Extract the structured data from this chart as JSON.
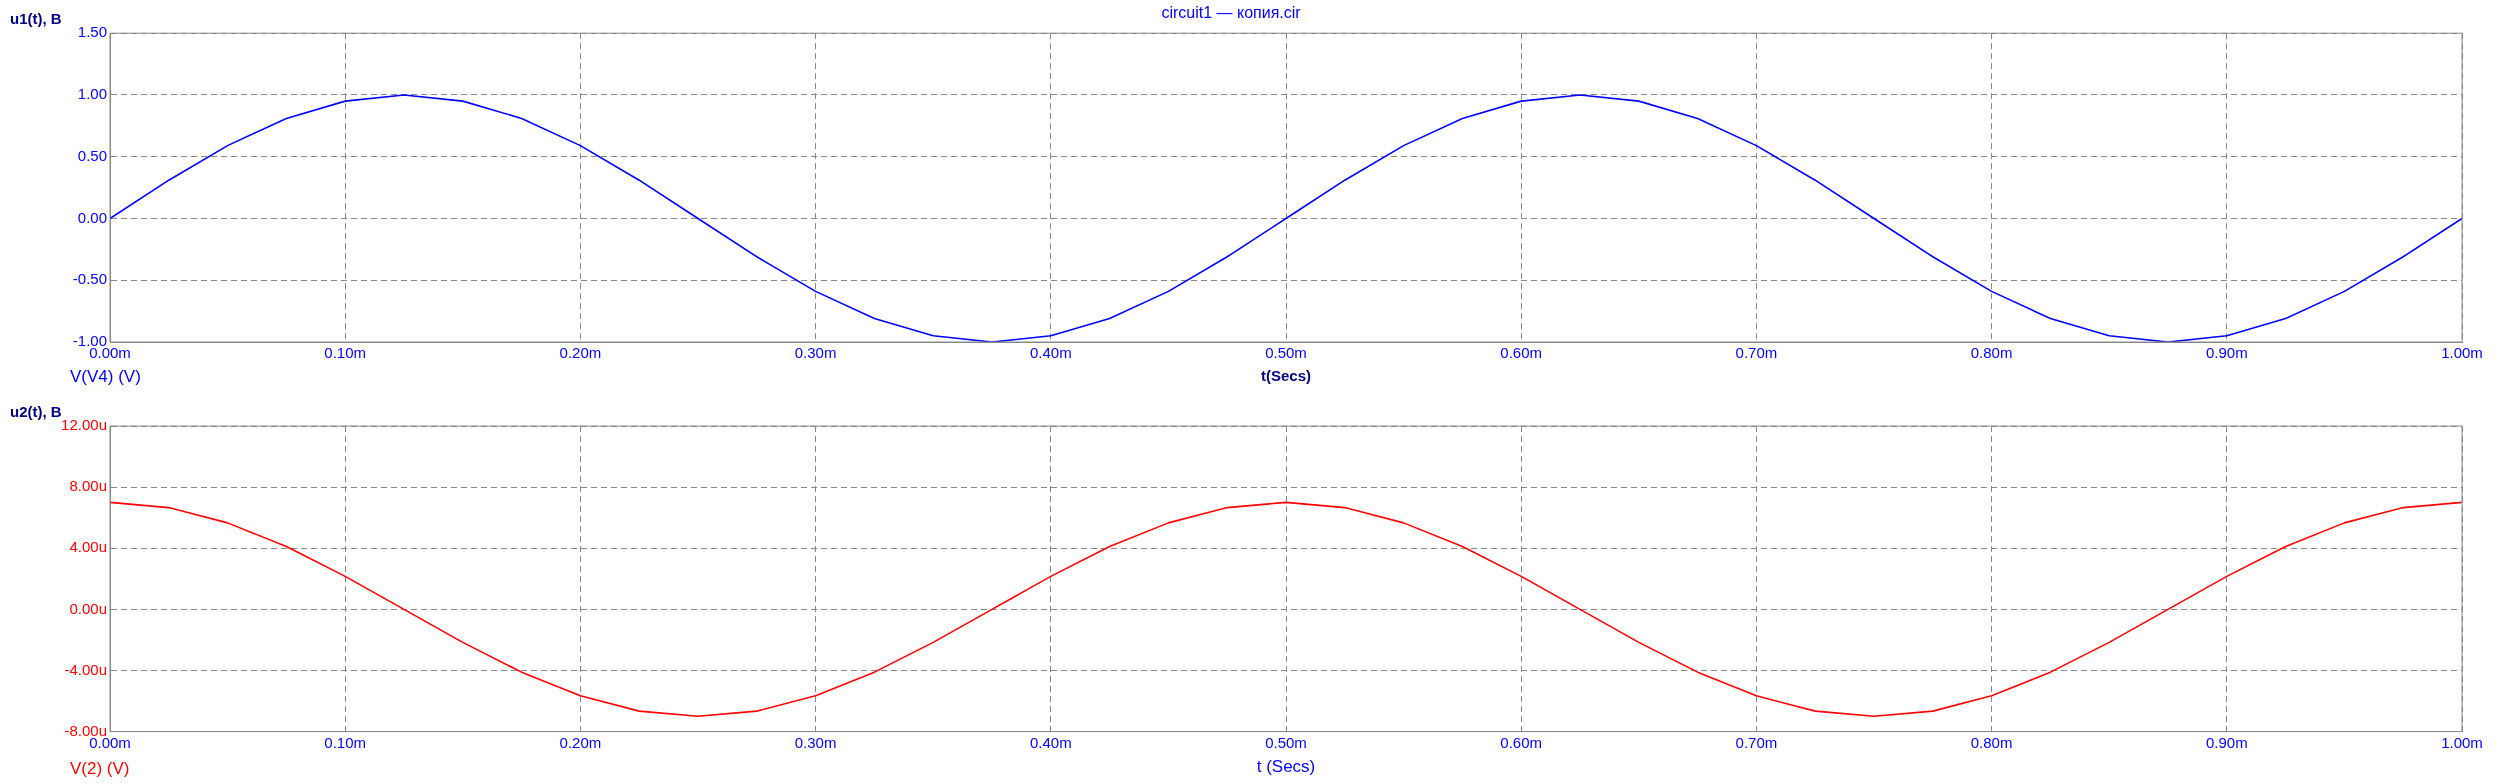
{
  "chart_data": [
    {
      "type": "line",
      "title": "circuit1 — копия.cir",
      "xlabel": "t(Secs)",
      "ylabel": "u1(t), B",
      "x": [
        0,
        0.025,
        0.05,
        0.075,
        0.1,
        0.125,
        0.15,
        0.175,
        0.2,
        0.225,
        0.25,
        0.275,
        0.3,
        0.325,
        0.35,
        0.375,
        0.4,
        0.425,
        0.45,
        0.475,
        0.5,
        0.525,
        0.55,
        0.575,
        0.6,
        0.625,
        0.65,
        0.675,
        0.7,
        0.725,
        0.75,
        0.775,
        0.8,
        0.825,
        0.85,
        0.875,
        0.9,
        0.925,
        0.95,
        0.975,
        1
      ],
      "series": [
        {
          "name": "V(V4) (V)",
          "color": "#0000ff",
          "values": [
            0,
            0.31,
            0.59,
            0.81,
            0.95,
            1,
            0.95,
            0.81,
            0.59,
            0.31,
            0,
            -0.31,
            -0.59,
            -0.81,
            -0.95,
            -1,
            -0.95,
            -0.81,
            -0.59,
            -0.31,
            0,
            0.31,
            0.59,
            0.81,
            0.95,
            1,
            0.95,
            0.81,
            0.59,
            0.31,
            0,
            -0.31,
            -0.59,
            -0.81,
            -0.95,
            -1,
            -0.95,
            -0.81,
            -0.59,
            -0.31,
            0
          ]
        }
      ],
      "xlim": [
        0,
        1
      ],
      "xticks": [
        {
          "value": 0,
          "label": "0.00m"
        },
        {
          "value": 0.1,
          "label": "0.10m"
        },
        {
          "value": 0.2,
          "label": "0.20m"
        },
        {
          "value": 0.3,
          "label": "0.30m"
        },
        {
          "value": 0.4,
          "label": "0.40m"
        },
        {
          "value": 0.5,
          "label": "0.50m"
        },
        {
          "value": 0.6,
          "label": "0.60m"
        },
        {
          "value": 0.7,
          "label": "0.70m"
        },
        {
          "value": 0.8,
          "label": "0.80m"
        },
        {
          "value": 0.9,
          "label": "0.90m"
        },
        {
          "value": 1,
          "label": "1.00m"
        }
      ],
      "ylim": [
        -1,
        1.5
      ],
      "yticks": [
        {
          "value": -1,
          "label": "-1.00"
        },
        {
          "value": -0.5,
          "label": "-0.50"
        },
        {
          "value": 0,
          "label": "0.00"
        },
        {
          "value": 0.5,
          "label": "0.50"
        },
        {
          "value": 1,
          "label": "1.00"
        },
        {
          "value": 1.5,
          "label": "1.50"
        }
      ],
      "grid": true,
      "marker": "none",
      "legend": false
    },
    {
      "type": "line",
      "xlabel": "t (Secs)",
      "ylabel": "u2(t), B",
      "x": [
        0,
        0.025,
        0.05,
        0.075,
        0.1,
        0.125,
        0.15,
        0.175,
        0.2,
        0.225,
        0.25,
        0.275,
        0.3,
        0.325,
        0.35,
        0.375,
        0.4,
        0.425,
        0.45,
        0.475,
        0.5,
        0.525,
        0.55,
        0.575,
        0.6,
        0.625,
        0.65,
        0.675,
        0.7,
        0.725,
        0.75,
        0.775,
        0.8,
        0.825,
        0.85,
        0.875,
        0.9,
        0.925,
        0.95,
        0.975,
        1
      ],
      "series": [
        {
          "name": "V(2) (V)",
          "color": "#ff0000",
          "values": [
            7,
            6.66,
            5.66,
            4.11,
            2.16,
            0,
            -2.16,
            -4.11,
            -5.66,
            -6.66,
            -7,
            -6.66,
            -5.66,
            -4.11,
            -2.16,
            0,
            2.16,
            4.11,
            5.66,
            6.66,
            7,
            6.66,
            5.66,
            4.11,
            2.16,
            0,
            -2.16,
            -4.11,
            -5.66,
            -6.66,
            -7,
            -6.66,
            -5.66,
            -4.11,
            -2.16,
            0,
            2.16,
            4.11,
            5.66,
            6.66,
            7
          ]
        }
      ],
      "xlim": [
        0,
        1
      ],
      "xticks": [
        {
          "value": 0,
          "label": "0.00m"
        },
        {
          "value": 0.1,
          "label": "0.10m"
        },
        {
          "value": 0.2,
          "label": "0.20m"
        },
        {
          "value": 0.3,
          "label": "0.30m"
        },
        {
          "value": 0.4,
          "label": "0.40m"
        },
        {
          "value": 0.5,
          "label": "0.50m"
        },
        {
          "value": 0.6,
          "label": "0.60m"
        },
        {
          "value": 0.7,
          "label": "0.70m"
        },
        {
          "value": 0.8,
          "label": "0.80m"
        },
        {
          "value": 0.9,
          "label": "0.90m"
        },
        {
          "value": 1,
          "label": "1.00m"
        }
      ],
      "ylim": [
        -8,
        12
      ],
      "yticks": [
        {
          "value": -8,
          "label": "-8.00u"
        },
        {
          "value": -4,
          "label": "-4.00u"
        },
        {
          "value": 0,
          "label": "0.00u"
        },
        {
          "value": 4,
          "label": "4.00u"
        },
        {
          "value": 8,
          "label": "8.00u"
        },
        {
          "value": 12,
          "label": "12.00u"
        }
      ],
      "grid": true,
      "marker": "none",
      "legend": false
    }
  ]
}
